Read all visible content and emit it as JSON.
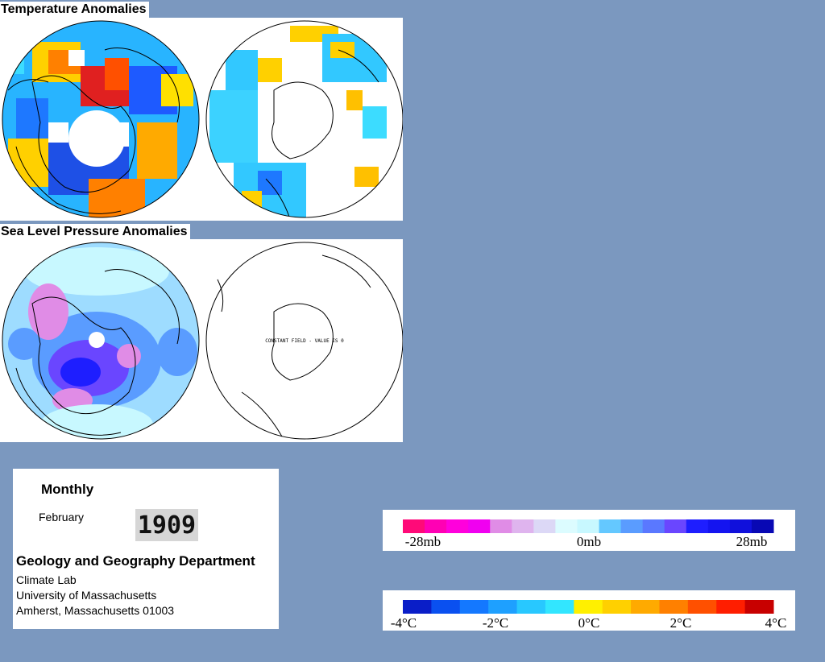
{
  "sections": {
    "temperature_title": "Temperature Anomalies",
    "pressure_title": "Sea Level Pressure Anomalies"
  },
  "maps": {
    "south_slp_note": "CONSTANT FIELD - VALUE IS 0"
  },
  "info": {
    "frequency": "Monthly",
    "month": "February",
    "year": "1909",
    "department": "Geology and Geography Department",
    "lab": "Climate Lab",
    "university": "University of Massachusetts",
    "address": "Amherst, Massachusetts 01003"
  },
  "pressure_legend": {
    "colors": [
      "#ff0a78",
      "#ff00b4",
      "#ff00dc",
      "#f000f0",
      "#e08ce6",
      "#dfb4ee",
      "#dcd8f6",
      "#dcfcff",
      "#c8f8ff",
      "#64c8ff",
      "#5a9cff",
      "#5a78ff",
      "#6a46ff",
      "#1e1eff",
      "#1414f0",
      "#1010dc",
      "#0808b4"
    ],
    "labels": [
      "-28mb",
      "0mb",
      "28mb"
    ],
    "colors_meaning": "pink = negative, blue = positive"
  },
  "temperature_legend": {
    "colors": [
      "#0a1ec8",
      "#0a50f0",
      "#1478ff",
      "#1ea0ff",
      "#28c8ff",
      "#32e6ff",
      "#fff000",
      "#ffd000",
      "#ffaa00",
      "#ff8000",
      "#ff5000",
      "#ff1e00",
      "#c80000"
    ],
    "labels": [
      "-4°C",
      "-2°C",
      "0°C",
      "2°C",
      "4°C"
    ]
  },
  "colors": {
    "background": "#7b98bf",
    "ocean_temp": "#1ea0ff",
    "ocean_slp": "#9edcff"
  }
}
